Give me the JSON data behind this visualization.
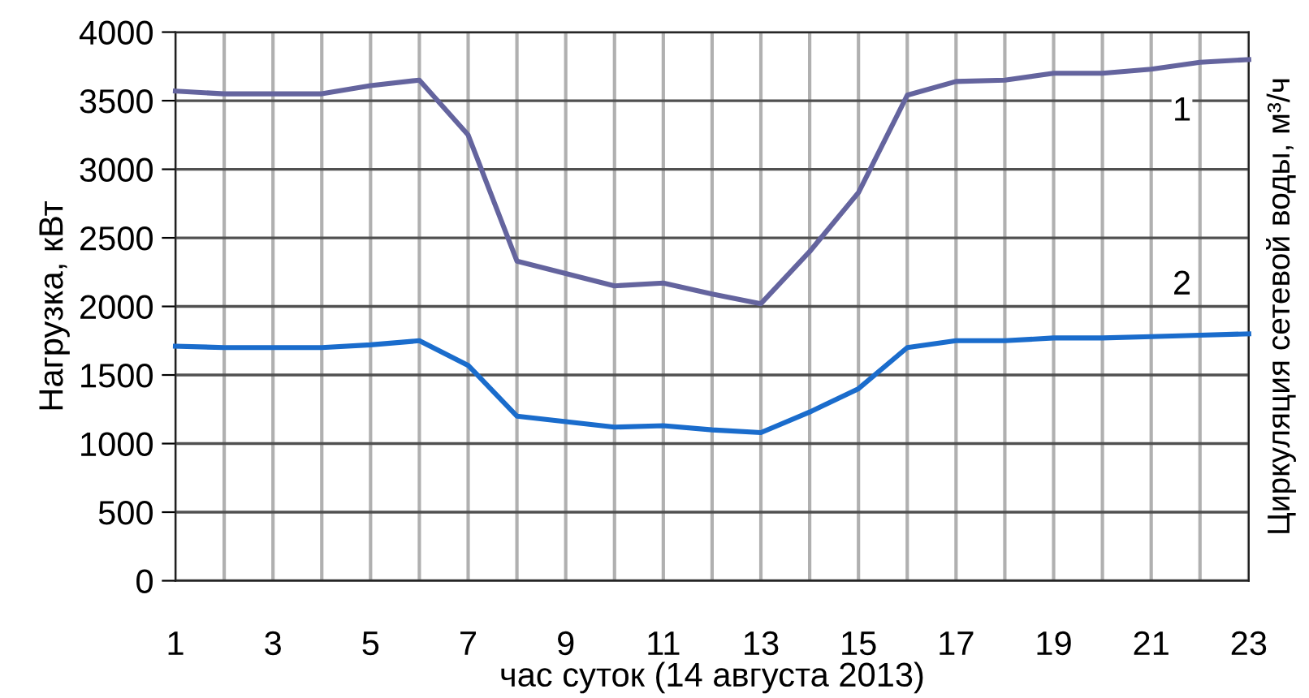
{
  "chart_data": {
    "type": "line",
    "xlabel": "час суток (14 августа 2013)",
    "ylabel": "Нагрузка, кВт",
    "y2label": "Циркуляция сетевой воды, м³/ч",
    "x": [
      1,
      2,
      3,
      4,
      5,
      6,
      7,
      8,
      9,
      10,
      11,
      12,
      13,
      14,
      15,
      16,
      17,
      18,
      19,
      20,
      21,
      22,
      23
    ],
    "series": [
      {
        "name": "1",
        "color": "#64649e",
        "values": [
          3570,
          3550,
          3550,
          3550,
          3610,
          3650,
          3250,
          2330,
          2240,
          2150,
          2170,
          2090,
          2020,
          2400,
          2830,
          3540,
          3640,
          3650,
          3700,
          3700,
          3730,
          3780,
          3800
        ]
      },
      {
        "name": "2",
        "color": "#1a6ccc",
        "values": [
          1710,
          1700,
          1700,
          1700,
          1720,
          1750,
          1570,
          1200,
          1160,
          1120,
          1130,
          1100,
          1080,
          1230,
          1400,
          1700,
          1750,
          1750,
          1770,
          1770,
          1780,
          1790,
          1800
        ]
      }
    ],
    "xlim": [
      1,
      23
    ],
    "xticks": [
      1,
      {
        "value": 2,
        "label": null
      },
      3,
      {
        "value": 4,
        "label": null
      },
      5,
      {
        "value": 6,
        "label": null
      },
      7,
      {
        "value": 8,
        "label": null
      },
      9,
      {
        "value": 10,
        "label": null
      },
      11,
      {
        "value": 12,
        "label": null
      },
      13,
      {
        "value": 14,
        "label": null
      },
      15,
      {
        "value": 16,
        "label": null
      },
      17,
      {
        "value": 18,
        "label": null
      },
      19,
      {
        "value": 20,
        "label": null
      },
      21,
      {
        "value": 22,
        "label": null
      },
      23
    ],
    "ylim": [
      0,
      4000
    ],
    "yticks": [
      0,
      500,
      1000,
      1500,
      2000,
      2500,
      3000,
      3500,
      4000
    ],
    "grid": true,
    "marker": "none",
    "line_style": "solid"
  }
}
